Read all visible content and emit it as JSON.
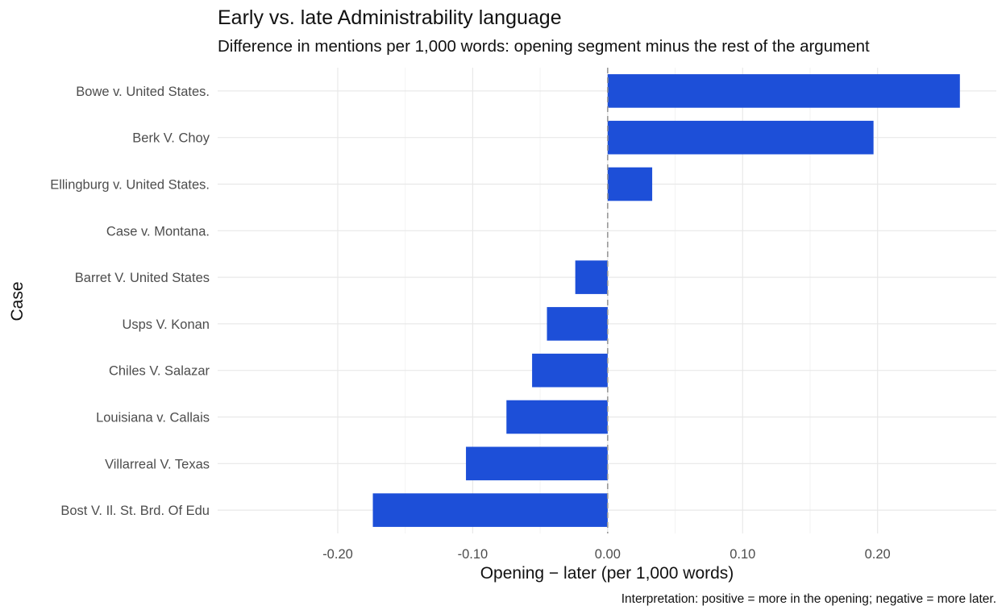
{
  "chart_data": {
    "type": "bar",
    "orientation": "horizontal",
    "title": "Early vs. late Administrability language",
    "subtitle": "Difference in mentions per 1,000 words: opening segment minus the rest of the argument",
    "xlabel": "Opening − later (per 1,000 words)",
    "ylabel": "Case",
    "caption": "Interpretation: positive = more in the opening; negative = more later.",
    "categories": [
      "Bowe v. United States.",
      "Berk V. Choy",
      "Ellingburg v. United States.",
      "Case v. Montana.",
      "Barret V. United States",
      "Usps V. Konan",
      "Chiles V. Salazar",
      "Louisiana v. Callais",
      "Villarreal V. Texas",
      "Bost V. Il. St. Brd. Of Edu"
    ],
    "values": [
      0.261,
      0.197,
      0.033,
      0.0,
      -0.024,
      -0.045,
      -0.056,
      -0.075,
      -0.105,
      -0.174
    ],
    "xlim": [
      -0.289,
      0.288
    ],
    "xticks": [
      -0.2,
      -0.1,
      0.0,
      0.1,
      0.2
    ],
    "xtick_labels": [
      "-0.20",
      "-0.10",
      "0.00",
      "0.10",
      "0.20"
    ],
    "bar_color": "#1d4fd8",
    "reference_line": {
      "x": 0.0,
      "style": "dashed",
      "color": "#999999"
    },
    "grid": true,
    "legend": "none"
  }
}
